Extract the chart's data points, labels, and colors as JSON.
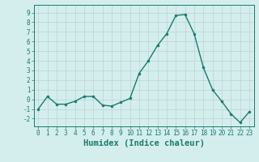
{
  "x": [
    0,
    1,
    2,
    3,
    4,
    5,
    6,
    7,
    8,
    9,
    10,
    11,
    12,
    13,
    14,
    15,
    16,
    17,
    18,
    19,
    20,
    21,
    22,
    23
  ],
  "y": [
    -1.0,
    0.3,
    -0.5,
    -0.5,
    -0.2,
    0.3,
    0.3,
    -0.6,
    -0.7,
    -0.3,
    0.1,
    2.7,
    4.0,
    5.6,
    6.8,
    8.7,
    8.8,
    6.8,
    3.3,
    1.0,
    -0.2,
    -1.5,
    -2.4,
    -1.3
  ],
  "line_color": "#1a7a6e",
  "marker_color": "#1a7a6e",
  "bg_color": "#d4eeee",
  "grid_color": "#b8d4d0",
  "xlabel": "Humidex (Indice chaleur)",
  "ylim": [
    -2.8,
    9.8
  ],
  "xlim": [
    -0.5,
    23.5
  ],
  "yticks": [
    -2,
    -1,
    0,
    1,
    2,
    3,
    4,
    5,
    6,
    7,
    8,
    9
  ],
  "xticks": [
    0,
    1,
    2,
    3,
    4,
    5,
    6,
    7,
    8,
    9,
    10,
    11,
    12,
    13,
    14,
    15,
    16,
    17,
    18,
    19,
    20,
    21,
    22,
    23
  ],
  "tick_fontsize": 5.5,
  "xlabel_fontsize": 7.5,
  "line_width": 1.0,
  "marker_size": 2.0
}
